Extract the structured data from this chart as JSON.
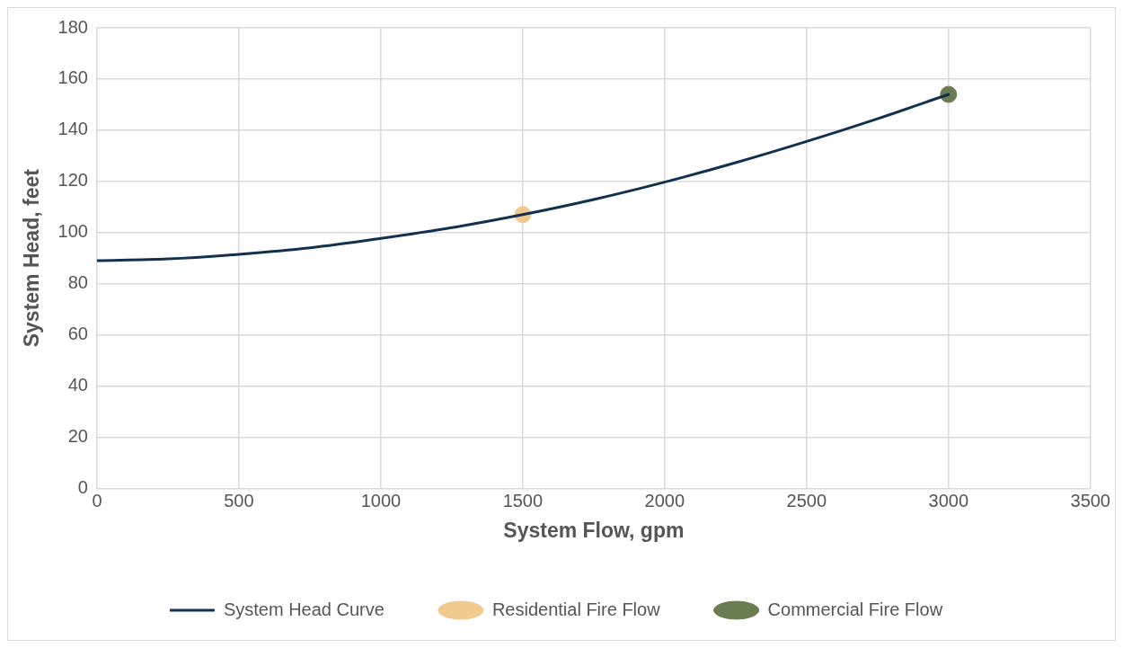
{
  "chart_data": {
    "type": "line",
    "xlabel": "System Flow, gpm",
    "ylabel": "System Head, feet",
    "xlim": [
      0,
      3500
    ],
    "xticks": [
      0,
      500,
      1000,
      1500,
      2000,
      2500,
      3000,
      3500
    ],
    "ylim": [
      0,
      180
    ],
    "yticks": [
      0,
      20,
      40,
      60,
      80,
      100,
      120,
      140,
      160,
      180
    ],
    "grid": true,
    "legend": "bottom",
    "series": [
      {
        "name": "System Head Curve",
        "type": "line",
        "marker": "none",
        "line_style": "solid",
        "color": "#14304f",
        "x": [
          0,
          250,
          500,
          750,
          1000,
          1250,
          1500,
          1750,
          2000,
          2250,
          2500,
          2750,
          3000
        ],
        "values": [
          89,
          89.7,
          91.5,
          94,
          97.7,
          101.9,
          107,
          112.9,
          119.7,
          127.3,
          135.6,
          144.5,
          154
        ]
      },
      {
        "name": "Residential Fire Flow",
        "type": "scatter",
        "marker": "circle",
        "color": "#f0ca8e",
        "x": [
          1500
        ],
        "values": [
          107
        ]
      },
      {
        "name": "Commercial Fire Flow",
        "type": "scatter",
        "marker": "circle",
        "color": "#6b7c52",
        "x": [
          3000
        ],
        "values": [
          154
        ]
      }
    ]
  }
}
